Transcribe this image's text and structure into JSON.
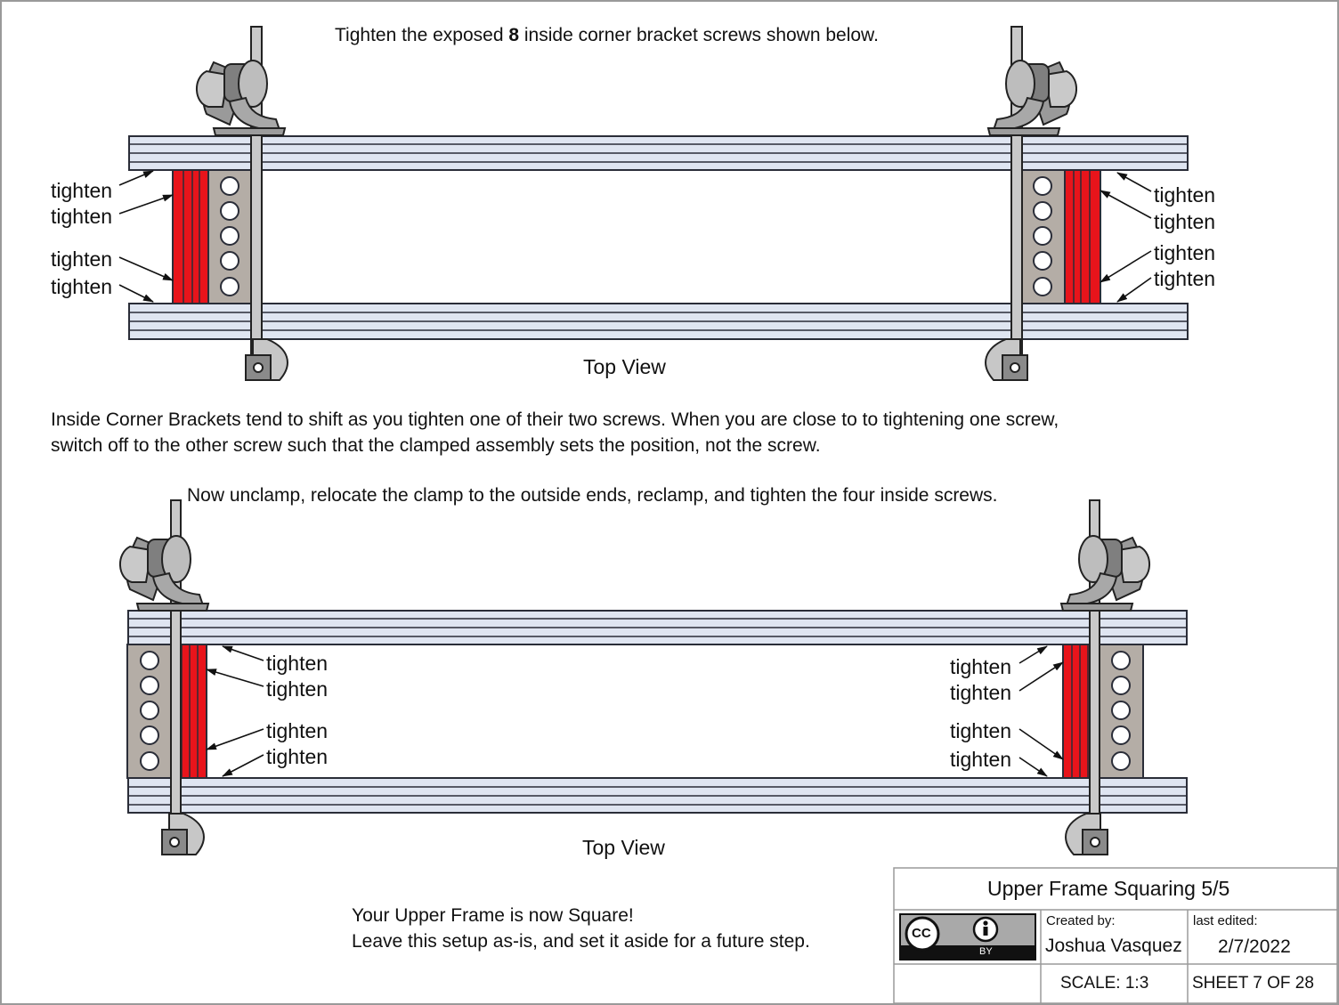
{
  "instruction_top": {
    "before": "Tighten the exposed ",
    "bold": "8",
    "after": " inside corner bracket screws shown below."
  },
  "top_view_label": "Top View",
  "callout_word": "tighten",
  "note_lines": [
    "Inside Corner Brackets tend to shift as you tighten one of their two screws. When you are close to to tightening one screw,",
    "switch off to the other screw such that the clamped assembly sets the position, not the screw."
  ],
  "instruction_bottom": "Now unclamp, relocate the clamp to the outside ends, reclamp, and tighten the four inside screws.",
  "final_lines": [
    "Your Upper Frame is now Square!",
    "Leave this setup as-is, and set it aside for a future step."
  ],
  "title_block": {
    "title": "Upper Frame Squaring 5/5",
    "license_cc": "CC",
    "license_by": "BY",
    "created_by_label": "Created by:",
    "created_by": "Joshua Vasquez",
    "last_edited_label": "last edited:",
    "last_edited": "2/7/2022",
    "scale": "SCALE: 1:3",
    "sheet": "SHEET 7 OF 28"
  },
  "colors": {
    "rail": "#dfe5f1",
    "rail_stroke": "#2a2d38",
    "bracket_red": "#e8141b",
    "plate_gray": "#b4ada6",
    "clamp_gray": "#8e8e8e"
  },
  "icons": [
    "creative-commons-icon",
    "attribution-person-icon",
    "bar-clamp-icon"
  ]
}
